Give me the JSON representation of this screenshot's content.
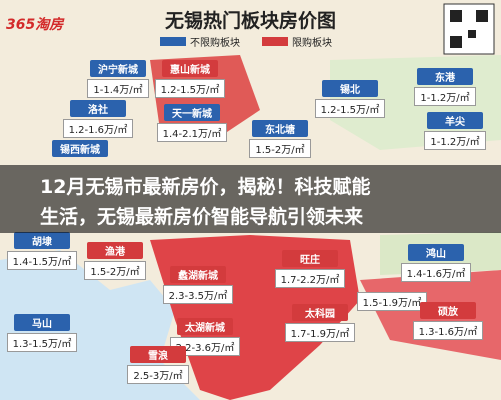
{
  "logo": "365淘房",
  "header": {
    "title": "无锡热门板块房价图"
  },
  "legend": [
    "不限购板块",
    "限购板块"
  ],
  "districts": [
    {
      "name": "沪宁新城",
      "price": "1-1.4万/㎡"
    },
    {
      "name": "惠山新城",
      "price": "1.2-1.5万/㎡"
    },
    {
      "name": "东港",
      "price": "1-1.2万/㎡"
    },
    {
      "name": "锡北",
      "price": "1.2-1.5万/㎡"
    },
    {
      "name": "洛社",
      "price": "1.2-1.6万/㎡"
    },
    {
      "name": "天一新城",
      "price": "1.4-2.1万/㎡"
    },
    {
      "name": "羊尖",
      "price": "1-1.2万/㎡"
    },
    {
      "name": "东北塘",
      "price": "1.5-2万/㎡"
    },
    {
      "name": "锡西新城"
    },
    {
      "name": "胡埭",
      "price": "1.4-1.5万/㎡"
    },
    {
      "name": "渔港",
      "price": "1.5-2万/㎡"
    },
    {
      "name": "旺庄",
      "price": "1.7-2.2万/㎡"
    },
    {
      "name": "鸿山",
      "price": "1.4-1.6万/㎡"
    },
    {
      "name": "蠡湖新城",
      "price": "2.3-3.5万/㎡"
    },
    {
      "price": "1.5-1.9万/㎡"
    },
    {
      "name": "硕放",
      "price": "1.3-1.6万/㎡"
    },
    {
      "name": "太科园",
      "price": "1.7-1.9万/㎡"
    },
    {
      "name": "马山",
      "price": "1.3-1.5万/㎡"
    },
    {
      "name": "太湖新城",
      "price": "2.2-3.6万/㎡"
    },
    {
      "name": "雪浪",
      "price": "2.5-3万/㎡"
    }
  ],
  "headline": [
    "12月无锡市最新房价，揭秘！科技赋能",
    "生活，无锡最新房价智能导航引领未来"
  ]
}
